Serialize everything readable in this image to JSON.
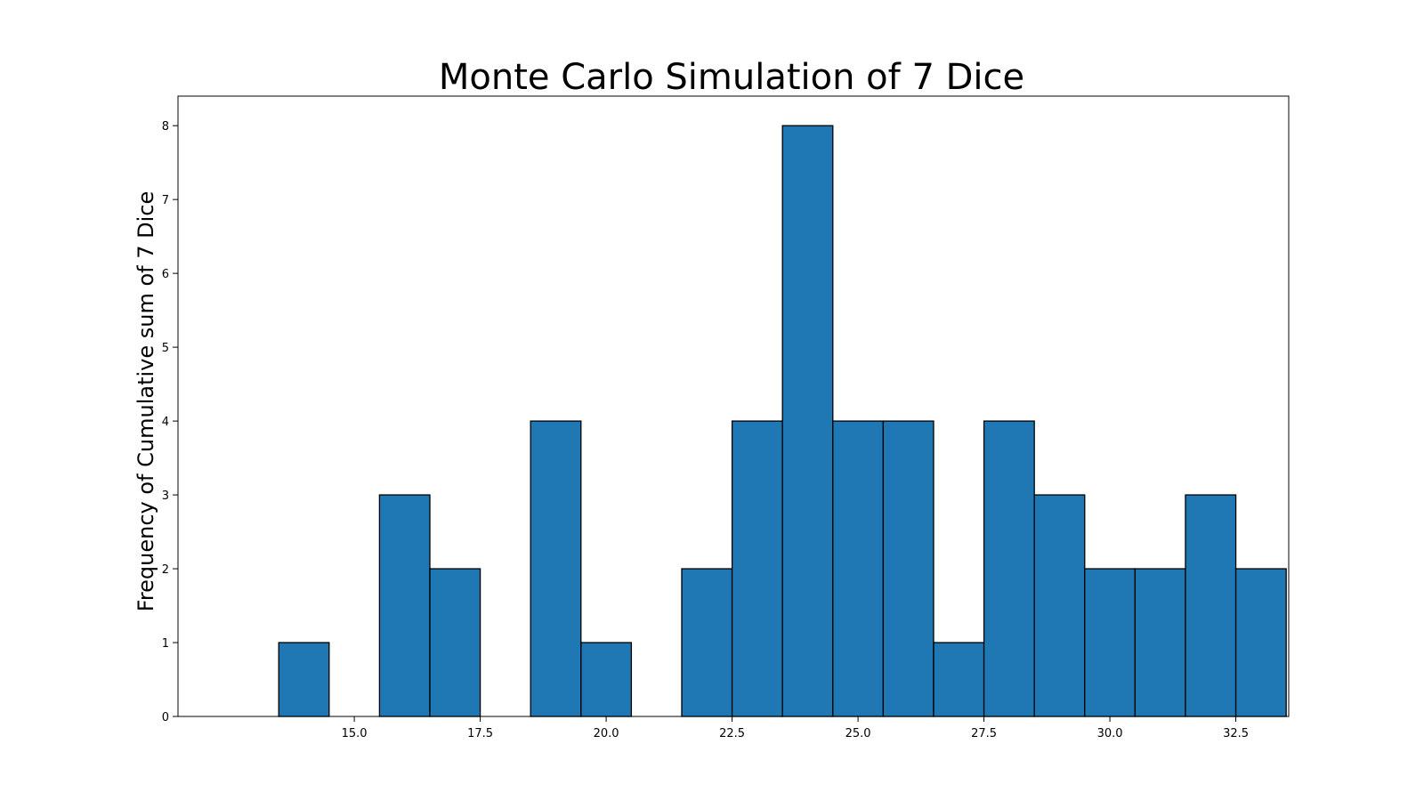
{
  "chart_data": {
    "type": "bar",
    "title": "Monte Carlo Simulation of 7 Dice",
    "xlabel": "",
    "ylabel": "Frequency of Cumulative sum of 7 Dice",
    "bar_width": 1,
    "bins": [
      {
        "x": 14,
        "count": 1
      },
      {
        "x": 15,
        "count": 0
      },
      {
        "x": 16,
        "count": 3
      },
      {
        "x": 17,
        "count": 2
      },
      {
        "x": 18,
        "count": 0
      },
      {
        "x": 19,
        "count": 4
      },
      {
        "x": 20,
        "count": 1
      },
      {
        "x": 21,
        "count": 0
      },
      {
        "x": 22,
        "count": 2
      },
      {
        "x": 23,
        "count": 4
      },
      {
        "x": 24,
        "count": 8
      },
      {
        "x": 25,
        "count": 4
      },
      {
        "x": 26,
        "count": 4
      },
      {
        "x": 27,
        "count": 1
      },
      {
        "x": 28,
        "count": 4
      },
      {
        "x": 29,
        "count": 3
      },
      {
        "x": 30,
        "count": 2
      },
      {
        "x": 31,
        "count": 2
      },
      {
        "x": 32,
        "count": 3
      },
      {
        "x": 33,
        "count": 2
      }
    ],
    "xlim": [
      11.5,
      33.55
    ],
    "ylim": [
      0,
      8.4
    ],
    "xticks": [
      15.0,
      17.5,
      20.0,
      22.5,
      25.0,
      27.5,
      30.0,
      32.5
    ],
    "xtick_labels": [
      "15.0",
      "17.5",
      "20.0",
      "22.5",
      "25.0",
      "27.5",
      "30.0",
      "32.5"
    ],
    "yticks": [
      0,
      1,
      2,
      3,
      4,
      5,
      6,
      7,
      8
    ],
    "ytick_labels": [
      "0",
      "1",
      "2",
      "3",
      "4",
      "5",
      "6",
      "7",
      "8"
    ],
    "bar_color": "#1f77b4",
    "edge_color": "#000000",
    "grid": false,
    "legend": "none"
  }
}
